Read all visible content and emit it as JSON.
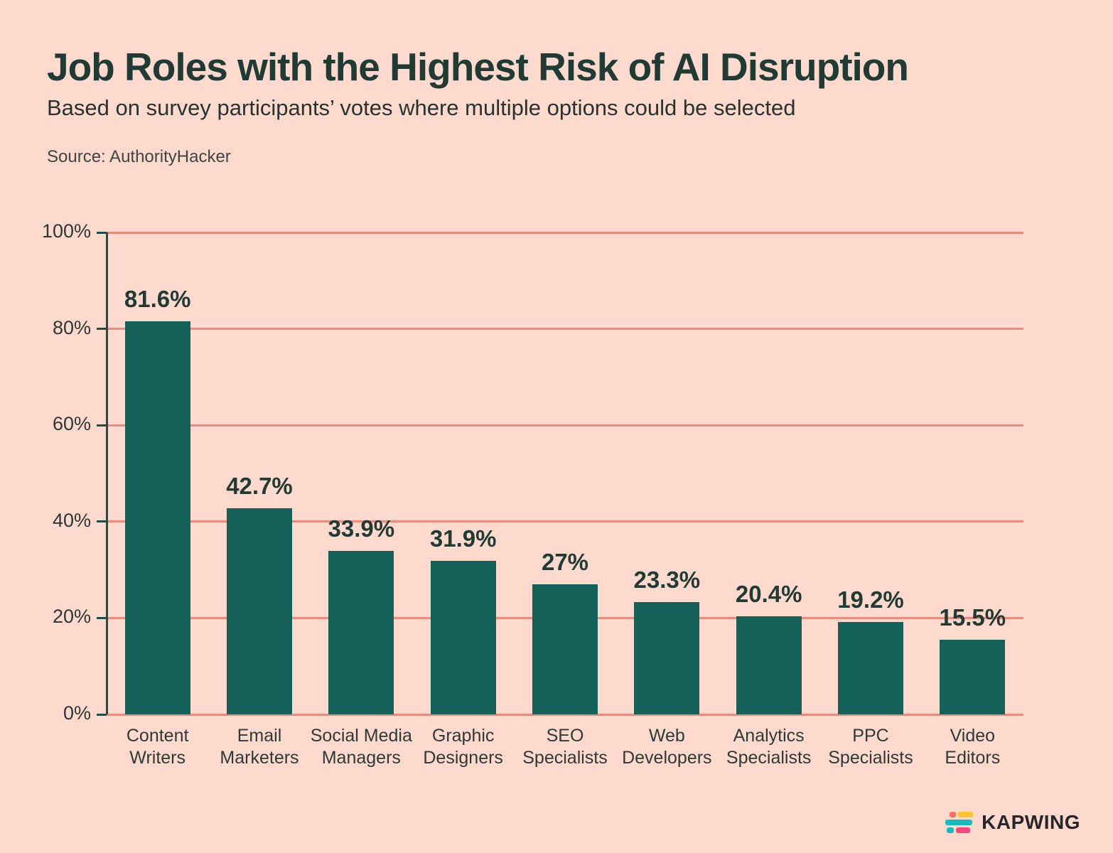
{
  "page": {
    "title": "Job Roles with the Highest Risk of AI Disruption",
    "subtitle": "Based on survey participants’ votes where multiple options could be selected",
    "source": "Source: AuthorityHacker"
  },
  "chart_data": {
    "type": "bar",
    "title": "Job Roles with the Highest Risk of AI Disruption",
    "subtitle": "Based on survey participants’ votes where multiple options could be selected",
    "source": "Source: AuthorityHacker",
    "categories": [
      "Content Writers",
      "Email Marketers",
      "Social Media Managers",
      "Graphic Designers",
      "SEO Specialists",
      "Web Developers",
      "Analytics Specialists",
      "PPC Specialists",
      "Video Editors"
    ],
    "category_lines": [
      [
        "Content",
        "Writers"
      ],
      [
        "Email",
        "Marketers"
      ],
      [
        "Social Media",
        "Managers"
      ],
      [
        "Graphic",
        "Designers"
      ],
      [
        "SEO",
        "Specialists"
      ],
      [
        "Web",
        "Developers"
      ],
      [
        "Analytics",
        "Specialists"
      ],
      [
        "PPC",
        "Specialists"
      ],
      [
        "Video",
        "Editors"
      ]
    ],
    "values": [
      81.6,
      42.7,
      33.9,
      31.9,
      27,
      23.3,
      20.4,
      19.2,
      15.5
    ],
    "value_labels": [
      "81.6%",
      "42.7%",
      "33.9%",
      "31.9%",
      "27%",
      "23.3%",
      "20.4%",
      "19.2%",
      "15.5%"
    ],
    "xlabel": "",
    "ylabel": "",
    "ylim": [
      0,
      100
    ],
    "yticks": [
      0,
      20,
      40,
      60,
      80,
      100
    ],
    "ytick_labels": [
      "0%",
      "20%",
      "40%",
      "60%",
      "80%",
      "100%"
    ],
    "grid": "horizontal",
    "legend": "none",
    "colors": {
      "background": "#fed9ce",
      "bar": "#136158",
      "gridline": "#ec8a7d",
      "axis": "#1b4f47",
      "value_label": "#203b33",
      "tick_text": "#2c3833",
      "title_text": "#203b33"
    }
  },
  "branding": {
    "logo_text": "KAPWING",
    "logo_icon": "kapwing-bars-icon",
    "icon_bar_colors": [
      "#f8705c",
      "#fec32d",
      "#12bdbd",
      "#12bdbd",
      "#f8467f"
    ],
    "text_color": "#26262b"
  }
}
